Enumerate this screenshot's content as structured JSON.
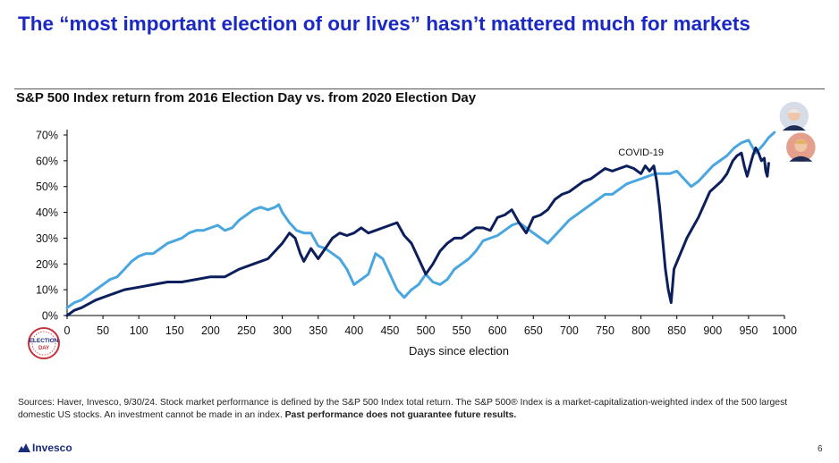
{
  "title": "The “most important election of our lives” hasn’t mattered much for markets",
  "sources": {
    "text": "Sources: Haver, Invesco, 9/30/24. Stock market performance is defined by the S&P 500 Index total return. The S&P 500® Index is a market-capitalization-weighted index of the 500 largest domestic US stocks. An investment cannot be made in an index.",
    "bold": "Past performance does not guarantee future results."
  },
  "logo": {
    "name": "Invesco",
    "icon": "invesco-mountain-icon"
  },
  "page_number": "6",
  "badge": {
    "icon": "election-day-seal-icon",
    "text_lines": [
      "ELECTION",
      "DAY"
    ]
  },
  "chart_data": {
    "type": "line",
    "title": "S&P 500 Index return from 2016 Election Day vs. from 2020 Election Day",
    "xlabel": "Days since election",
    "ylabel": "",
    "xlim": [
      0,
      1000
    ],
    "ylim": [
      0,
      0.7
    ],
    "x_ticks": [
      0,
      50,
      100,
      150,
      200,
      250,
      300,
      350,
      400,
      450,
      500,
      550,
      600,
      650,
      700,
      750,
      800,
      850,
      900,
      950,
      1000
    ],
    "y_ticks": [
      0,
      0.1,
      0.2,
      0.3,
      0.4,
      0.5,
      0.6,
      0.7
    ],
    "y_tick_labels": [
      "0%",
      "10%",
      "20%",
      "30%",
      "40%",
      "50%",
      "60%",
      "70%"
    ],
    "grid": false,
    "annotations": [
      {
        "text": "COVID-19",
        "x": 815,
        "y": 0.6
      }
    ],
    "series": [
      {
        "color": "#0c1f5c",
        "end_marker": "trump-portrait-icon",
        "points": [
          [
            0,
            0
          ],
          [
            10,
            0.02
          ],
          [
            20,
            0.03
          ],
          [
            40,
            0.06
          ],
          [
            60,
            0.08
          ],
          [
            80,
            0.1
          ],
          [
            100,
            0.11
          ],
          [
            120,
            0.12
          ],
          [
            140,
            0.13
          ],
          [
            160,
            0.13
          ],
          [
            180,
            0.14
          ],
          [
            200,
            0.15
          ],
          [
            220,
            0.15
          ],
          [
            240,
            0.18
          ],
          [
            260,
            0.2
          ],
          [
            280,
            0.22
          ],
          [
            300,
            0.28
          ],
          [
            310,
            0.32
          ],
          [
            318,
            0.3
          ],
          [
            325,
            0.24
          ],
          [
            330,
            0.21
          ],
          [
            340,
            0.26
          ],
          [
            350,
            0.22
          ],
          [
            360,
            0.26
          ],
          [
            370,
            0.3
          ],
          [
            380,
            0.32
          ],
          [
            390,
            0.31
          ],
          [
            400,
            0.32
          ],
          [
            410,
            0.34
          ],
          [
            420,
            0.32
          ],
          [
            430,
            0.33
          ],
          [
            440,
            0.34
          ],
          [
            450,
            0.35
          ],
          [
            460,
            0.36
          ],
          [
            470,
            0.31
          ],
          [
            480,
            0.28
          ],
          [
            490,
            0.22
          ],
          [
            500,
            0.16
          ],
          [
            510,
            0.2
          ],
          [
            520,
            0.25
          ],
          [
            530,
            0.28
          ],
          [
            540,
            0.3
          ],
          [
            550,
            0.3
          ],
          [
            560,
            0.32
          ],
          [
            570,
            0.34
          ],
          [
            580,
            0.34
          ],
          [
            590,
            0.33
          ],
          [
            600,
            0.38
          ],
          [
            610,
            0.39
          ],
          [
            620,
            0.41
          ],
          [
            630,
            0.36
          ],
          [
            640,
            0.32
          ],
          [
            650,
            0.38
          ],
          [
            660,
            0.39
          ],
          [
            670,
            0.41
          ],
          [
            680,
            0.45
          ],
          [
            690,
            0.47
          ],
          [
            700,
            0.48
          ],
          [
            710,
            0.5
          ],
          [
            720,
            0.52
          ],
          [
            730,
            0.53
          ],
          [
            740,
            0.55
          ],
          [
            750,
            0.57
          ],
          [
            760,
            0.56
          ],
          [
            770,
            0.57
          ],
          [
            780,
            0.58
          ],
          [
            790,
            0.57
          ],
          [
            800,
            0.55
          ],
          [
            806,
            0.58
          ],
          [
            812,
            0.56
          ],
          [
            818,
            0.58
          ],
          [
            822,
            0.52
          ],
          [
            826,
            0.42
          ],
          [
            830,
            0.3
          ],
          [
            834,
            0.18
          ],
          [
            838,
            0.1
          ],
          [
            842,
            0.05
          ],
          [
            846,
            0.18
          ],
          [
            852,
            0.22
          ],
          [
            858,
            0.26
          ],
          [
            864,
            0.3
          ],
          [
            872,
            0.34
          ],
          [
            880,
            0.38
          ],
          [
            888,
            0.43
          ],
          [
            896,
            0.48
          ],
          [
            904,
            0.5
          ],
          [
            912,
            0.52
          ],
          [
            920,
            0.55
          ],
          [
            928,
            0.6
          ],
          [
            934,
            0.62
          ],
          [
            940,
            0.63
          ],
          [
            944,
            0.58
          ],
          [
            948,
            0.54
          ],
          [
            952,
            0.58
          ],
          [
            956,
            0.62
          ],
          [
            960,
            0.65
          ],
          [
            964,
            0.63
          ],
          [
            968,
            0.6
          ],
          [
            972,
            0.61
          ],
          [
            974,
            0.56
          ],
          [
            976,
            0.54
          ],
          [
            978,
            0.59
          ]
        ]
      },
      {
        "color": "#4aa6df",
        "end_marker": "biden-portrait-icon",
        "points": [
          [
            0,
            0.03
          ],
          [
            10,
            0.05
          ],
          [
            20,
            0.06
          ],
          [
            30,
            0.08
          ],
          [
            40,
            0.1
          ],
          [
            50,
            0.12
          ],
          [
            60,
            0.14
          ],
          [
            70,
            0.15
          ],
          [
            80,
            0.18
          ],
          [
            90,
            0.21
          ],
          [
            100,
            0.23
          ],
          [
            110,
            0.24
          ],
          [
            120,
            0.24
          ],
          [
            130,
            0.26
          ],
          [
            140,
            0.28
          ],
          [
            150,
            0.29
          ],
          [
            160,
            0.3
          ],
          [
            170,
            0.32
          ],
          [
            180,
            0.33
          ],
          [
            190,
            0.33
          ],
          [
            200,
            0.34
          ],
          [
            210,
            0.35
          ],
          [
            220,
            0.33
          ],
          [
            230,
            0.34
          ],
          [
            240,
            0.37
          ],
          [
            250,
            0.39
          ],
          [
            260,
            0.41
          ],
          [
            270,
            0.42
          ],
          [
            280,
            0.41
          ],
          [
            290,
            0.42
          ],
          [
            295,
            0.43
          ],
          [
            300,
            0.4
          ],
          [
            310,
            0.36
          ],
          [
            320,
            0.33
          ],
          [
            330,
            0.32
          ],
          [
            340,
            0.32
          ],
          [
            350,
            0.27
          ],
          [
            360,
            0.26
          ],
          [
            370,
            0.24
          ],
          [
            380,
            0.22
          ],
          [
            390,
            0.18
          ],
          [
            400,
            0.12
          ],
          [
            410,
            0.14
          ],
          [
            420,
            0.16
          ],
          [
            430,
            0.24
          ],
          [
            440,
            0.22
          ],
          [
            450,
            0.16
          ],
          [
            460,
            0.1
          ],
          [
            470,
            0.07
          ],
          [
            480,
            0.1
          ],
          [
            490,
            0.12
          ],
          [
            500,
            0.16
          ],
          [
            510,
            0.13
          ],
          [
            520,
            0.12
          ],
          [
            530,
            0.14
          ],
          [
            540,
            0.18
          ],
          [
            550,
            0.2
          ],
          [
            560,
            0.22
          ],
          [
            570,
            0.25
          ],
          [
            580,
            0.29
          ],
          [
            590,
            0.3
          ],
          [
            600,
            0.31
          ],
          [
            610,
            0.33
          ],
          [
            620,
            0.35
          ],
          [
            630,
            0.36
          ],
          [
            640,
            0.34
          ],
          [
            650,
            0.32
          ],
          [
            660,
            0.3
          ],
          [
            670,
            0.28
          ],
          [
            680,
            0.31
          ],
          [
            690,
            0.34
          ],
          [
            700,
            0.37
          ],
          [
            710,
            0.39
          ],
          [
            720,
            0.41
          ],
          [
            730,
            0.43
          ],
          [
            740,
            0.45
          ],
          [
            750,
            0.47
          ],
          [
            760,
            0.47
          ],
          [
            770,
            0.49
          ],
          [
            780,
            0.51
          ],
          [
            790,
            0.52
          ],
          [
            800,
            0.53
          ],
          [
            810,
            0.54
          ],
          [
            820,
            0.55
          ],
          [
            830,
            0.55
          ],
          [
            840,
            0.55
          ],
          [
            850,
            0.56
          ],
          [
            860,
            0.53
          ],
          [
            870,
            0.5
          ],
          [
            880,
            0.52
          ],
          [
            890,
            0.55
          ],
          [
            900,
            0.58
          ],
          [
            910,
            0.6
          ],
          [
            920,
            0.62
          ],
          [
            930,
            0.65
          ],
          [
            940,
            0.67
          ],
          [
            950,
            0.68
          ],
          [
            960,
            0.63
          ],
          [
            970,
            0.66
          ],
          [
            978,
            0.69
          ],
          [
            986,
            0.71
          ]
        ]
      }
    ]
  }
}
